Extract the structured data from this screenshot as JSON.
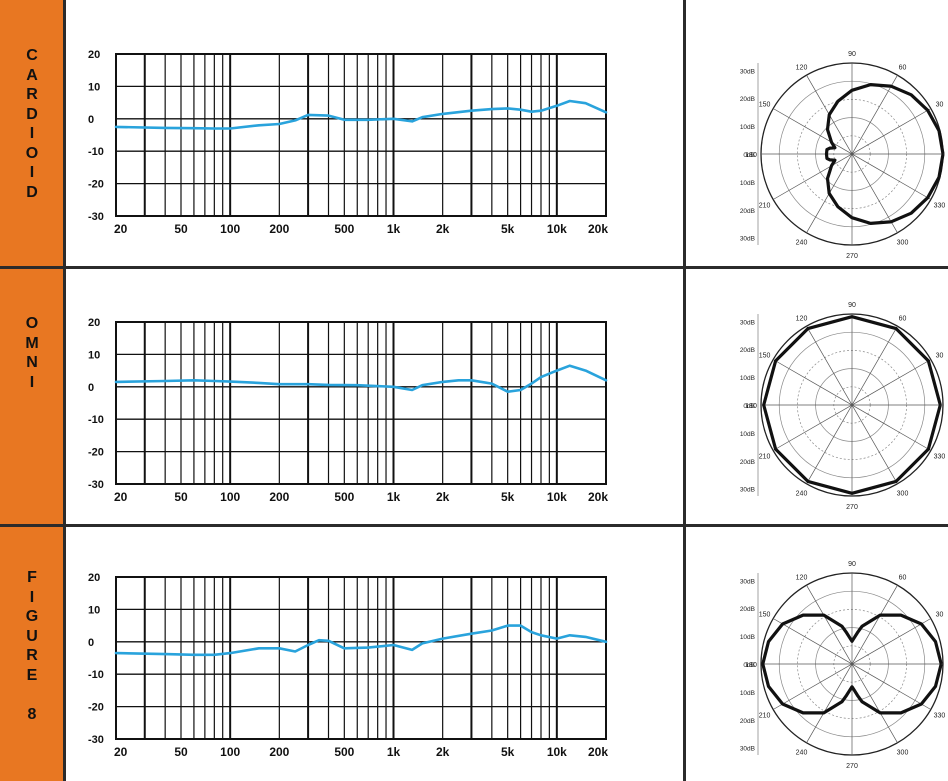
{
  "chart_data": [
    {
      "id": "cardioid",
      "type": "line",
      "pattern_label": [
        "C",
        "A",
        "R",
        "D",
        "I",
        "O",
        "I",
        "D"
      ],
      "xscale": "log",
      "xlim": [
        20,
        20000
      ],
      "ylim": [
        -30,
        20
      ],
      "xticks": [
        "20",
        "50",
        "100",
        "200",
        "500",
        "1k",
        "2k",
        "5k",
        "10k",
        "20k"
      ],
      "yticks": [
        "20",
        "10",
        "0",
        "-10",
        "-20",
        "-30"
      ],
      "line_color": "#29a3dc",
      "grid": true,
      "x": [
        20,
        40,
        60,
        80,
        100,
        150,
        200,
        250,
        300,
        400,
        500,
        700,
        1000,
        1300,
        1500,
        2000,
        3000,
        4000,
        5000,
        6000,
        7000,
        8000,
        10000,
        12000,
        15000,
        20000
      ],
      "y": [
        -2.5,
        -2.8,
        -2.9,
        -3,
        -3,
        -2,
        -1.6,
        -0.5,
        1.2,
        1,
        -0.3,
        -0.3,
        0,
        -0.8,
        0.5,
        1.5,
        2.5,
        3,
        3.2,
        2.8,
        2.2,
        2.5,
        4,
        5.5,
        4.8,
        2
      ],
      "polar": {
        "type": "polar",
        "r_labels": [
          "30dB",
          "20dB",
          "10dB",
          "0dB",
          "10dB",
          "20dB",
          "30dB"
        ],
        "angle_labels": [
          "0",
          "30",
          "60",
          "90",
          "120",
          "150",
          "180",
          "210",
          "240",
          "270",
          "300",
          "330"
        ],
        "angles": [
          0,
          15,
          30,
          45,
          60,
          75,
          90,
          105,
          120,
          135,
          150,
          160,
          165,
          170,
          180,
          190,
          195,
          200,
          210,
          225,
          240,
          255,
          270,
          285,
          300,
          315,
          330,
          345,
          360
        ],
        "r": [
          1.0,
          0.99,
          0.96,
          0.92,
          0.86,
          0.79,
          0.7,
          0.6,
          0.5,
          0.38,
          0.26,
          0.2,
          0.25,
          0.28,
          0.28,
          0.28,
          0.25,
          0.2,
          0.26,
          0.38,
          0.5,
          0.6,
          0.7,
          0.79,
          0.86,
          0.92,
          0.96,
          0.99,
          1.0
        ]
      }
    },
    {
      "id": "omni",
      "type": "line",
      "pattern_label": [
        "O",
        "M",
        "N",
        "I"
      ],
      "xscale": "log",
      "xlim": [
        20,
        20000
      ],
      "ylim": [
        -30,
        20
      ],
      "xticks": [
        "20",
        "50",
        "100",
        "200",
        "500",
        "1k",
        "2k",
        "5k",
        "10k",
        "20k"
      ],
      "yticks": [
        "20",
        "10",
        "0",
        "-10",
        "-20",
        "-30"
      ],
      "line_color": "#29a3dc",
      "grid": true,
      "x": [
        20,
        40,
        60,
        80,
        100,
        150,
        200,
        300,
        400,
        600,
        1000,
        1300,
        1500,
        2000,
        2500,
        3000,
        4000,
        5000,
        6000,
        7000,
        8000,
        10000,
        12000,
        15000,
        20000
      ],
      "y": [
        1.5,
        1.8,
        2,
        1.8,
        1.6,
        1.2,
        0.8,
        0.8,
        0.6,
        0.5,
        0,
        -1,
        0.5,
        1.5,
        2,
        2,
        1,
        -1.5,
        -1,
        1,
        3,
        5,
        6.5,
        5,
        2
      ],
      "polar": {
        "type": "polar",
        "r_labels": [
          "30dB",
          "20dB",
          "10dB",
          "0dB",
          "10dB",
          "20dB",
          "30dB"
        ],
        "angle_labels": [
          "0",
          "30",
          "60",
          "90",
          "120",
          "150",
          "180",
          "210",
          "240",
          "270",
          "300",
          "330"
        ],
        "angles": [
          0,
          30,
          60,
          90,
          120,
          150,
          180,
          210,
          240,
          270,
          300,
          330,
          360
        ],
        "r": [
          0.97,
          0.97,
          0.97,
          0.97,
          0.97,
          0.97,
          0.97,
          0.97,
          0.97,
          0.97,
          0.97,
          0.97,
          0.97
        ]
      }
    },
    {
      "id": "figure8",
      "type": "line",
      "pattern_label": [
        "F",
        "I",
        "G",
        "U",
        "R",
        "E",
        "",
        "8"
      ],
      "xscale": "log",
      "xlim": [
        20,
        20000
      ],
      "ylim": [
        -30,
        20
      ],
      "xticks": [
        "20",
        "50",
        "100",
        "200",
        "500",
        "1k",
        "2k",
        "5k",
        "10k",
        "20k"
      ],
      "yticks": [
        "20",
        "10",
        "0",
        "-10",
        "-20",
        "-30"
      ],
      "line_color": "#29a3dc",
      "grid": true,
      "x": [
        20,
        40,
        60,
        80,
        100,
        150,
        200,
        250,
        300,
        350,
        400,
        500,
        700,
        1000,
        1300,
        1500,
        2000,
        3000,
        4000,
        5000,
        6000,
        7000,
        8000,
        10000,
        12000,
        15000,
        20000
      ],
      "y": [
        -3.5,
        -3.8,
        -4,
        -4,
        -3.5,
        -2,
        -2,
        -3,
        -1,
        0.5,
        0.3,
        -2,
        -1.8,
        -1,
        -2.5,
        -0.5,
        1,
        2.5,
        3.5,
        5,
        5,
        3,
        2,
        1,
        2,
        1.5,
        0
      ],
      "polar": {
        "type": "polar",
        "r_labels": [
          "30dB",
          "20dB",
          "10dB",
          "0dB",
          "10dB",
          "20dB",
          "30dB"
        ],
        "angle_labels": [
          "0",
          "30",
          "60",
          "90",
          "120",
          "150",
          "180",
          "210",
          "240",
          "270",
          "300",
          "330"
        ],
        "angles": [
          0,
          15,
          30,
          45,
          60,
          75,
          80,
          85,
          90,
          95,
          100,
          105,
          120,
          135,
          150,
          165,
          180,
          195,
          210,
          225,
          240,
          255,
          260,
          265,
          270,
          275,
          280,
          285,
          300,
          315,
          330,
          345,
          360
        ],
        "r": [
          0.98,
          0.95,
          0.88,
          0.76,
          0.62,
          0.43,
          0.35,
          0.29,
          0.25,
          0.29,
          0.35,
          0.43,
          0.62,
          0.76,
          0.88,
          0.95,
          0.98,
          0.95,
          0.88,
          0.76,
          0.62,
          0.43,
          0.35,
          0.29,
          0.25,
          0.29,
          0.35,
          0.43,
          0.62,
          0.76,
          0.88,
          0.95,
          0.98
        ]
      }
    }
  ]
}
